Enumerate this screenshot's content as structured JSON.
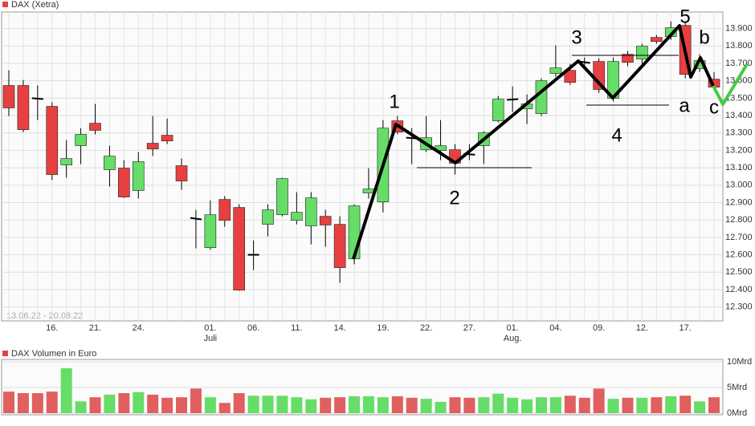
{
  "chart_data": [
    {
      "type": "candlestick",
      "title": "DAX (Xetra)",
      "subtitle": "13.06.22 - 20.08.22",
      "up_color": "#66dd66",
      "down_color": "#e84040",
      "doji_color": "#000000",
      "grid": true,
      "categories": [
        null,
        null,
        null,
        "16.",
        null,
        null,
        "21.",
        null,
        null,
        "24.",
        null,
        null,
        null,
        null,
        "01.",
        null,
        null,
        "06.",
        null,
        null,
        "11.",
        null,
        null,
        "14.",
        null,
        null,
        "19.",
        null,
        null,
        "22.",
        null,
        null,
        "27.",
        null,
        null,
        "01.",
        null,
        null,
        "04.",
        null,
        null,
        "09.",
        null,
        null,
        "12.",
        null,
        null,
        "17.",
        null,
        null
      ],
      "category_sublabels": [
        null,
        null,
        null,
        null,
        null,
        null,
        null,
        null,
        null,
        null,
        null,
        null,
        null,
        null,
        "Juli",
        null,
        null,
        null,
        null,
        null,
        null,
        null,
        null,
        null,
        null,
        null,
        null,
        null,
        null,
        null,
        null,
        null,
        null,
        null,
        null,
        "Aug.",
        null,
        null,
        null,
        null,
        null,
        null,
        null,
        null,
        null,
        null,
        null,
        null,
        null,
        null
      ],
      "open": [
        13573,
        13573,
        13500,
        13453,
        13116,
        13227,
        13356,
        13089,
        13098,
        12969,
        13241,
        13287,
        13112,
        12812,
        12641,
        12918,
        12872,
        12600,
        12775,
        12830,
        12798,
        12766,
        12821,
        12775,
        12577,
        12955,
        12904,
        13370,
        13273,
        13204,
        13199,
        13204,
        13180,
        13227,
        13370,
        13490,
        13439,
        13411,
        13642,
        13660,
        13711,
        13711,
        13499,
        13752,
        13725,
        13849,
        13854,
        13918,
        13669,
        13609
      ],
      "high": [
        13660,
        13605,
        13573,
        13476,
        13259,
        13328,
        13467,
        13227,
        13144,
        13190,
        13397,
        13383,
        13153,
        12858,
        12913,
        12937,
        12890,
        12683,
        12890,
        13043,
        12960,
        12960,
        12858,
        12821,
        12890,
        13098,
        13374,
        13397,
        13328,
        13397,
        13374,
        13236,
        13236,
        13310,
        13513,
        13568,
        13522,
        13614,
        13803,
        13697,
        13734,
        13729,
        13734,
        13771,
        13812,
        13863,
        13941,
        13937,
        13752,
        13651
      ],
      "low": [
        13397,
        13305,
        13374,
        13029,
        13043,
        13121,
        13292,
        12992,
        12927,
        12923,
        13167,
        13236,
        12973,
        12637,
        12628,
        12761,
        12393,
        12512,
        12706,
        12821,
        12775,
        12660,
        12646,
        12439,
        12545,
        12923,
        12844,
        13292,
        13121,
        13190,
        13144,
        13061,
        13144,
        13121,
        13360,
        13420,
        13351,
        13397,
        13623,
        13577,
        13674,
        13531,
        13480,
        13683,
        13697,
        13812,
        13835,
        13614,
        13651,
        13550
      ],
      "close": [
        13444,
        13319,
        13495,
        13061,
        13153,
        13292,
        13315,
        13167,
        12932,
        13135,
        13208,
        13254,
        13024,
        12803,
        12830,
        12798,
        12397,
        12600,
        12858,
        13038,
        12844,
        12927,
        12771,
        12526,
        12881,
        12978,
        13328,
        13305,
        13268,
        13273,
        13227,
        13126,
        13175,
        13301,
        13494,
        13495,
        13467,
        13600,
        13674,
        13591,
        13702,
        13550,
        13711,
        13706,
        13799,
        13826,
        13905,
        13637,
        13716,
        13563
      ],
      "ylim": [
        12220,
        13995
      ],
      "yticks": [
        {
          "value": 12300,
          "label": "12.300"
        },
        {
          "value": 12400,
          "label": "12.400"
        },
        {
          "value": 12500,
          "label": "12.500"
        },
        {
          "value": 12600,
          "label": "12.600"
        },
        {
          "value": 12700,
          "label": "12.700"
        },
        {
          "value": 12800,
          "label": "12.800"
        },
        {
          "value": 12900,
          "label": "12.900"
        },
        {
          "value": 13000,
          "label": "13.000"
        },
        {
          "value": 13100,
          "label": "13.100"
        },
        {
          "value": 13200,
          "label": "13.200"
        },
        {
          "value": 13300,
          "label": "13.300"
        },
        {
          "value": 13400,
          "label": "13.400"
        },
        {
          "value": 13500,
          "label": "13.500"
        },
        {
          "value": 13600,
          "label": "13.600"
        },
        {
          "value": 13700,
          "label": "13.700"
        },
        {
          "value": 13800,
          "label": "13.800"
        },
        {
          "value": 13900,
          "label": "13.900"
        }
      ],
      "annotations": [
        "1",
        "2",
        "3",
        "4",
        "5",
        "a",
        "b",
        "c"
      ]
    },
    {
      "type": "bar",
      "title": "DAX Volumen in Euro",
      "up_color": "#66dd66",
      "down_color": "#e06060",
      "values": [
        4.2,
        3.9,
        3.9,
        4.2,
        8.75,
        2.3,
        3.1,
        3.6,
        3.9,
        4.1,
        3.6,
        3.0,
        3.1,
        4.8,
        3.1,
        2.0,
        3.9,
        3.4,
        3.4,
        3.4,
        3.1,
        2.7,
        3.0,
        3.1,
        3.3,
        3.3,
        3.1,
        3.3,
        3.0,
        2.8,
        2.2,
        3.1,
        3.0,
        3.1,
        3.8,
        3.0,
        2.7,
        3.1,
        3.1,
        3.4,
        3.0,
        4.8,
        2.8,
        3.0,
        3.0,
        3.1,
        3.3,
        3.4,
        2.3,
        3.1
      ],
      "ylim": [
        0,
        10
      ],
      "yticks": [
        {
          "value": 0,
          "label": "0Mrd"
        },
        {
          "value": 5,
          "label": "5Mrd"
        },
        {
          "value": 10,
          "label": "10Mrd"
        }
      ]
    }
  ]
}
